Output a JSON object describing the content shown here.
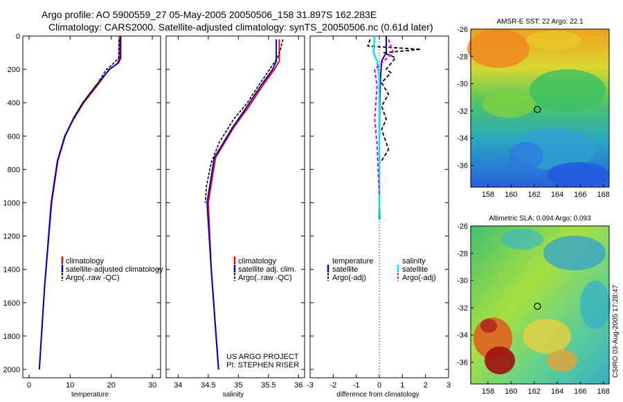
{
  "title": {
    "line1": "Argo profile: AO 5900559_27 05-May-2005 20050506_158 31.897S 162.283E",
    "line2": "Climatology: CARS2000. Satellite-adjusted climatology: synTS_20050506.nc (0.61d later)"
  },
  "colors": {
    "clim": "#ff0000",
    "sat": "#0000cc",
    "argo": "#000000",
    "sal_sat": "#00e5ff",
    "sal_argo": "#dd00dd"
  },
  "chart_data": [
    {
      "type": "line",
      "id": "temperature",
      "xlabel": "temperature",
      "xlim": [
        -1.5,
        32
      ],
      "ylim": [
        0,
        2050
      ],
      "xticks": [
        0,
        10,
        20,
        30
      ],
      "yticks": [
        0,
        200,
        400,
        600,
        800,
        1000,
        1200,
        1400,
        1600,
        1800,
        2000
      ],
      "legend": [
        "climatology",
        "satellite-adjusted climatology",
        "Argo(..raw -QC)"
      ],
      "series": [
        {
          "name": "climatology",
          "x": [
            22.0,
            22.0,
            21.5,
            19.5,
            16.5,
            13.3,
            10.8,
            8.8,
            7.0,
            5.5,
            3.8,
            2.5
          ],
          "y": [
            0,
            130,
            165,
            200,
            300,
            400,
            500,
            600,
            750,
            1000,
            1500,
            2000
          ]
        },
        {
          "name": "satellite-adjusted climatology",
          "x": [
            22.3,
            22.3,
            21.8,
            19.6,
            16.2,
            13.1,
            10.7,
            8.7,
            6.9,
            5.4,
            3.8,
            2.5
          ],
          "y": [
            0,
            130,
            160,
            200,
            300,
            400,
            500,
            600,
            750,
            1000,
            1500,
            2000
          ]
        },
        {
          "name": "Argo(..raw -QC)",
          "x": [
            21.9,
            21.8,
            20.3,
            18.7,
            16.3,
            12.8,
            10.6
          ],
          "y": [
            20,
            130,
            170,
            205,
            300,
            410,
            500
          ]
        }
      ]
    },
    {
      "type": "line",
      "id": "salinity",
      "xlabel": "salinity",
      "xlim": [
        33.8,
        36.1
      ],
      "ylim": [
        0,
        2050
      ],
      "xticks": [
        34,
        34.5,
        35,
        35.5,
        36
      ],
      "legend": [
        "climatology",
        "satellite adj. clim.",
        "Argo(..raw -QC)"
      ],
      "annotation": [
        "US ARGO PROJECT",
        "PI: STEPHEN RISER"
      ],
      "series": [
        {
          "name": "climatology",
          "x": [
            35.68,
            35.68,
            35.6,
            35.4,
            35.18,
            34.92,
            34.62,
            34.5,
            34.55,
            34.63,
            34.67
          ],
          "y": [
            20,
            150,
            200,
            300,
            420,
            550,
            730,
            1000,
            1400,
            1800,
            2000
          ]
        },
        {
          "name": "satellite adj. clim.",
          "x": [
            35.63,
            35.63,
            35.57,
            35.37,
            35.15,
            34.9,
            34.6,
            34.48,
            34.55,
            34.63,
            34.67
          ],
          "y": [
            20,
            150,
            200,
            300,
            420,
            550,
            730,
            1000,
            1400,
            1800,
            2000
          ]
        },
        {
          "name": "Argo(..raw -QC)",
          "x": [
            35.74,
            35.7,
            35.65,
            35.5,
            35.33,
            35.15,
            34.92,
            34.68,
            34.55,
            34.47,
            34.45
          ],
          "y": [
            20,
            80,
            130,
            210,
            300,
            400,
            500,
            640,
            760,
            900,
            1000
          ]
        }
      ]
    },
    {
      "type": "line",
      "id": "difference",
      "xlabel": "difference from climatology",
      "xlim": [
        -3,
        3
      ],
      "ylim": [
        0,
        2050
      ],
      "xticks": [
        -3,
        -2,
        -1,
        0,
        1,
        2,
        3
      ],
      "legend_left": [
        "temperature",
        "satellite",
        "Argo(-adj)"
      ],
      "legend_right": [
        "salinity",
        "satellite",
        "Argo(-adj)"
      ],
      "series": [
        {
          "name": "temperature satellite",
          "x": [
            0.3,
            0.3,
            0.1,
            0.05,
            0.02,
            0,
            0,
            0
          ],
          "y": [
            0,
            100,
            150,
            250,
            400,
            600,
            800,
            1100
          ]
        },
        {
          "name": "temperature Argo(-adj)",
          "x": [
            -0.4,
            -0.5,
            1.8,
            0.2,
            0.7,
            0.3,
            0.5,
            0.1,
            0.4,
            0.1,
            0.3,
            0.1,
            0.4,
            0.05
          ],
          "y": [
            20,
            60,
            80,
            100,
            130,
            200,
            220,
            280,
            350,
            420,
            500,
            560,
            680,
            760
          ]
        },
        {
          "name": "salinity satellite",
          "x": [
            -0.2,
            -0.25,
            -0.1,
            0,
            0,
            0,
            0,
            0,
            0.03,
            0.03
          ],
          "y": [
            0,
            100,
            150,
            250,
            400,
            600,
            800,
            1000,
            1100,
            1100
          ]
        },
        {
          "name": "salinity Argo(-adj)",
          "x": [
            0.4,
            0.6,
            -0.2,
            -0.1,
            -0.2,
            -0.1,
            -0.05,
            0
          ],
          "y": [
            20,
            100,
            200,
            300,
            500,
            650,
            800,
            950
          ]
        }
      ]
    },
    {
      "type": "heatmap",
      "id": "sst-map",
      "title": "AMSR-E SST: 22 Argo: 22.1",
      "xlim": [
        156.5,
        168.5
      ],
      "ylim": [
        -37.6,
        -26
      ],
      "xticks": [
        158,
        160,
        162,
        164,
        166,
        168
      ],
      "yticks": [
        -26,
        -28,
        -30,
        -32,
        -34,
        -36
      ],
      "marker": {
        "lon": 162.283,
        "lat": -31.897
      }
    },
    {
      "type": "heatmap",
      "id": "sla-map",
      "title": "Altimetric SLA: 0.094 Argo: 0.093",
      "xlim": [
        156.5,
        168.5
      ],
      "ylim": [
        -37.6,
        -26
      ],
      "xticks": [
        158,
        160,
        162,
        164,
        166,
        168
      ],
      "yticks": [
        -26,
        -28,
        -30,
        -32,
        -34,
        -36
      ],
      "marker": {
        "lon": 162.283,
        "lat": -31.897
      }
    }
  ],
  "footer": {
    "credit": "CSIRO 03-Aug-2005 17:28:47"
  }
}
